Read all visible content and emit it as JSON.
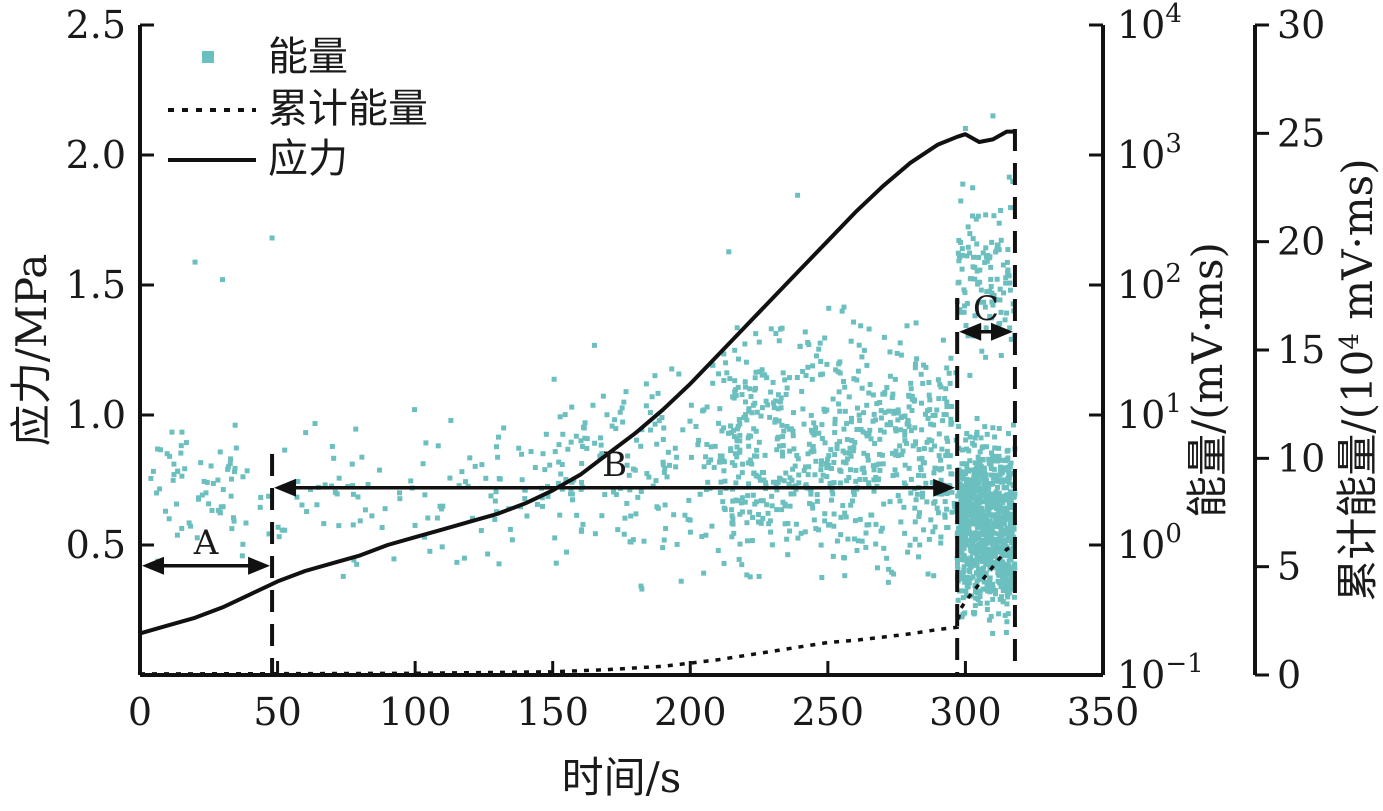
{
  "chart_data": {
    "type": "scatter",
    "title": "",
    "x_axis": {
      "label": "时间/s",
      "range": [
        0,
        350
      ],
      "ticks": [
        0,
        50,
        100,
        150,
        200,
        250,
        300,
        350
      ],
      "tick_labels": [
        "0",
        "50",
        "100",
        "150",
        "200",
        "250",
        "300",
        "350"
      ]
    },
    "y_left": {
      "label": "应力/MPa",
      "range": [
        0,
        2.5
      ],
      "ticks": [
        0.5,
        1.0,
        1.5,
        2.0,
        2.5
      ],
      "tick_labels": [
        "0.5",
        "1.0",
        "1.5",
        "2.0",
        "2.5"
      ]
    },
    "y_right1": {
      "label": "能量/(mV·ms)",
      "scale": "log",
      "range": [
        0.1,
        10000
      ],
      "ticks": [
        0.1,
        1,
        10,
        100,
        1000,
        10000
      ],
      "tick_bases": [
        "10",
        "10",
        "10",
        "10",
        "10",
        "10"
      ],
      "tick_exponents": [
        "−1",
        "0",
        "1",
        "2",
        "3",
        "4"
      ]
    },
    "y_right2": {
      "label_main": "累计能量/(10",
      "label_sup": "4",
      "label_end": " mV·ms)",
      "range": [
        0,
        30
      ],
      "ticks": [
        0,
        5,
        10,
        15,
        20,
        25,
        30
      ],
      "tick_labels": [
        "0",
        "5",
        "10",
        "15",
        "20",
        "25",
        "30"
      ]
    },
    "legend": {
      "position": "top-left",
      "entries": [
        {
          "label": "能量",
          "style": "square-marker"
        },
        {
          "label": "累计能量",
          "style": "dotted-line"
        },
        {
          "label": "应力",
          "style": "solid-line"
        }
      ]
    },
    "series": [
      {
        "name": "应力",
        "axis": "left",
        "x": [
          0,
          10,
          20,
          30,
          40,
          50,
          60,
          70,
          80,
          90,
          100,
          110,
          120,
          130,
          140,
          150,
          160,
          170,
          180,
          190,
          200,
          210,
          220,
          230,
          240,
          250,
          260,
          270,
          280,
          290,
          297,
          300,
          305,
          310,
          315,
          317,
          318
        ],
        "y": [
          0.16,
          0.19,
          0.22,
          0.26,
          0.31,
          0.36,
          0.4,
          0.43,
          0.46,
          0.5,
          0.53,
          0.56,
          0.59,
          0.62,
          0.66,
          0.71,
          0.77,
          0.85,
          0.93,
          1.02,
          1.12,
          1.23,
          1.34,
          1.45,
          1.56,
          1.67,
          1.78,
          1.88,
          1.97,
          2.04,
          2.07,
          2.08,
          2.05,
          2.06,
          2.09,
          2.09,
          2.09
        ]
      },
      {
        "name": "累计能量",
        "axis": "right2",
        "x": [
          0,
          50,
          100,
          150,
          170,
          190,
          200,
          210,
          220,
          230,
          240,
          250,
          260,
          270,
          280,
          290,
          297,
          298,
          300,
          305,
          310,
          315,
          318
        ],
        "y": [
          0.05,
          0.06,
          0.08,
          0.15,
          0.25,
          0.4,
          0.55,
          0.7,
          0.9,
          1.1,
          1.3,
          1.5,
          1.6,
          1.75,
          1.9,
          2.1,
          2.2,
          3.0,
          3.4,
          4.2,
          5.0,
          5.8,
          6.0
        ]
      },
      {
        "name": "能量",
        "axis": "right1",
        "color": "#6cbfbf",
        "note_generation": "dense points",
        "clusters": [
          {
            "x": [
              2,
              48
            ],
            "log10y": [
              -0.3,
              1.1
            ],
            "count": 70
          },
          {
            "x": [
              50,
              150
            ],
            "log10y": [
              -0.4,
              1.2
            ],
            "count": 110
          },
          {
            "x": [
              150,
              210
            ],
            "log10y": [
              -0.5,
              1.8
            ],
            "count": 160
          },
          {
            "x": [
              210,
              297
            ],
            "log10y": [
              -0.6,
              2.0
            ],
            "count": 700
          },
          {
            "x": [
              297,
              318
            ],
            "log10y": [
              -0.8,
              1.1
            ],
            "count": 900
          },
          {
            "x": [
              297,
              318
            ],
            "log10y": [
              1.1,
              3.0
            ],
            "count": 120
          }
        ],
        "highlights": [
          {
            "x": 48,
            "y": 230
          },
          {
            "x": 300,
            "y": 1600
          },
          {
            "x": 310,
            "y": 2000
          },
          {
            "x": 239,
            "y": 490
          },
          {
            "x": 214,
            "y": 180
          },
          {
            "x": 30,
            "y": 110
          },
          {
            "x": 20,
            "y": 150
          }
        ]
      }
    ],
    "annotations": [
      {
        "label": "A",
        "x_from": 0,
        "x_to": 48,
        "y": 0.42
      },
      {
        "label": "B",
        "x_from": 48,
        "x_to": 297,
        "y": 0.72
      },
      {
        "label": "C",
        "x_from": 297,
        "x_to": 318,
        "y": 1.32
      }
    ],
    "vertical_dashed_lines": [
      {
        "x": 48,
        "y_top": 0.85
      },
      {
        "x": 297,
        "y_top": 1.45
      },
      {
        "x": 318,
        "y_top": 2.1
      }
    ],
    "grid": false
  }
}
